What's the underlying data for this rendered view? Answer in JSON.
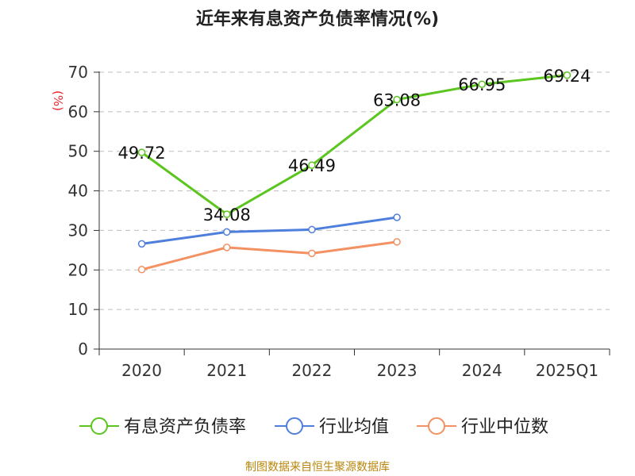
{
  "chart_data": {
    "type": "line",
    "title": "近年来有息资产负债率情况(%)",
    "ylabel": "(%)",
    "xlabel": "",
    "categories": [
      "2020",
      "2021",
      "2022",
      "2023",
      "2024",
      "2025Q1"
    ],
    "ylim": [
      0,
      70
    ],
    "yticks": [
      0,
      10,
      20,
      30,
      40,
      50,
      60,
      70
    ],
    "grid": true,
    "legend_position": "bottom",
    "series": [
      {
        "name": "有息资产负债率",
        "color": "#5cc51f",
        "values": [
          49.72,
          34.08,
          46.49,
          63.08,
          66.95,
          69.24
        ],
        "labels": [
          "49.72",
          "34.08",
          "46.49",
          "63.08",
          "66.95",
          "69.24"
        ]
      },
      {
        "name": "行业均值",
        "color": "#4f7fdc",
        "values": [
          26.6,
          29.6,
          30.2,
          33.3,
          null,
          null
        ]
      },
      {
        "name": "行业中位数",
        "color": "#f39162",
        "values": [
          20.1,
          25.7,
          24.2,
          27.1,
          null,
          null
        ]
      }
    ]
  },
  "footer": "制图数据来自恒生聚源数据库"
}
